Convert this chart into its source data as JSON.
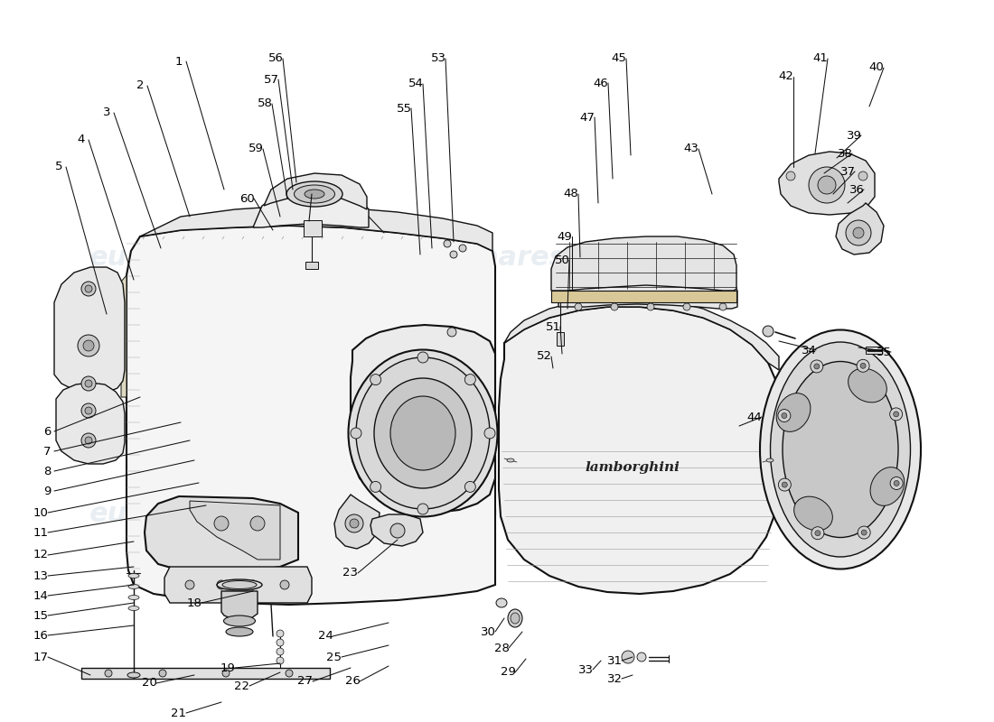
{
  "background_color": "#ffffff",
  "watermark_text": "eurospares",
  "watermark_color": "#b8c8d8",
  "watermark_alpha": 0.3,
  "line_color": "#000000",
  "text_color": "#000000",
  "drawing_color": "#111111",
  "fig_width": 11.0,
  "fig_height": 8.0,
  "label_data": {
    "1": [
      198,
      68,
      248,
      210
    ],
    "2": [
      155,
      95,
      210,
      240
    ],
    "3": [
      118,
      125,
      178,
      275
    ],
    "4": [
      90,
      155,
      148,
      310
    ],
    "5": [
      65,
      185,
      118,
      348
    ],
    "6": [
      52,
      478,
      155,
      440
    ],
    "7": [
      52,
      500,
      200,
      468
    ],
    "8": [
      52,
      522,
      210,
      488
    ],
    "9": [
      52,
      544,
      215,
      510
    ],
    "10": [
      45,
      568,
      220,
      535
    ],
    "11": [
      45,
      590,
      228,
      560
    ],
    "12": [
      45,
      615,
      148,
      600
    ],
    "13": [
      45,
      638,
      148,
      628
    ],
    "14": [
      45,
      660,
      148,
      648
    ],
    "15": [
      45,
      682,
      148,
      668
    ],
    "16": [
      45,
      704,
      148,
      693
    ],
    "17": [
      45,
      728,
      100,
      748
    ],
    "18": [
      215,
      668,
      280,
      655
    ],
    "19": [
      252,
      740,
      310,
      735
    ],
    "20": [
      165,
      757,
      215,
      748
    ],
    "21": [
      198,
      790,
      245,
      778
    ],
    "22": [
      268,
      760,
      310,
      745
    ],
    "23": [
      388,
      635,
      440,
      598
    ],
    "24": [
      360,
      705,
      430,
      690
    ],
    "25": [
      370,
      728,
      430,
      715
    ],
    "26": [
      390,
      755,
      430,
      738
    ],
    "27": [
      338,
      755,
      388,
      740
    ],
    "28": [
      555,
      718,
      578,
      700
    ],
    "29": [
      562,
      745,
      582,
      730
    ],
    "30": [
      540,
      700,
      558,
      685
    ],
    "31": [
      680,
      732,
      700,
      728
    ],
    "32": [
      680,
      752,
      700,
      748
    ],
    "33": [
      648,
      742,
      665,
      732
    ],
    "34": [
      895,
      388,
      862,
      378
    ],
    "35": [
      978,
      390,
      950,
      385
    ],
    "36": [
      948,
      210,
      938,
      225
    ],
    "37": [
      938,
      190,
      922,
      215
    ],
    "38": [
      935,
      170,
      912,
      192
    ],
    "39": [
      945,
      150,
      926,
      175
    ],
    "40": [
      970,
      75,
      962,
      118
    ],
    "41": [
      908,
      65,
      902,
      170
    ],
    "42": [
      870,
      85,
      878,
      185
    ],
    "43": [
      765,
      165,
      788,
      215
    ],
    "44": [
      835,
      462,
      818,
      472
    ],
    "45": [
      685,
      65,
      698,
      172
    ],
    "46": [
      665,
      92,
      678,
      198
    ],
    "47": [
      650,
      130,
      662,
      225
    ],
    "48": [
      632,
      215,
      642,
      285
    ],
    "49": [
      625,
      262,
      633,
      322
    ],
    "50": [
      622,
      288,
      628,
      342
    ],
    "51": [
      612,
      362,
      622,
      392
    ],
    "52": [
      602,
      395,
      612,
      408
    ],
    "53": [
      485,
      65,
      502,
      268
    ],
    "54": [
      460,
      93,
      478,
      275
    ],
    "55": [
      447,
      120,
      465,
      282
    ],
    "56": [
      305,
      65,
      328,
      202
    ],
    "57": [
      300,
      88,
      324,
      210
    ],
    "58": [
      293,
      115,
      318,
      220
    ],
    "59": [
      283,
      165,
      310,
      240
    ],
    "60": [
      273,
      220,
      302,
      255
    ]
  }
}
